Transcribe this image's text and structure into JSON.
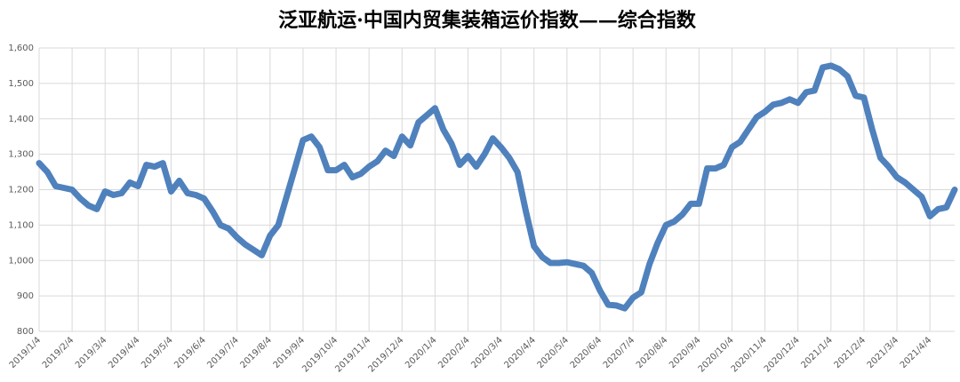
{
  "chart_data": {
    "type": "line",
    "title": "泛亚航运·中国内贸集装箱运价指数——综合指数",
    "categories": [
      "2019/1/4",
      null,
      null,
      null,
      "2019/2/4",
      null,
      null,
      null,
      "2019/3/4",
      null,
      null,
      null,
      "2019/4/4",
      null,
      null,
      null,
      "2019/5/4",
      null,
      null,
      null,
      "2019/6/4",
      null,
      null,
      null,
      "2019/7/4",
      null,
      null,
      null,
      "2019/8/4",
      null,
      null,
      null,
      "2019/9/4",
      null,
      null,
      null,
      "2019/10/4",
      null,
      null,
      null,
      "2019/11/4",
      null,
      null,
      null,
      "2019/12/4",
      null,
      null,
      null,
      "2020/1/4",
      null,
      null,
      null,
      "2020/2/4",
      null,
      null,
      null,
      "2020/3/4",
      null,
      null,
      null,
      "2020/4/4",
      null,
      null,
      null,
      "2020/5/4",
      null,
      null,
      null,
      "2020/6/4",
      null,
      null,
      null,
      "2020/7/4",
      null,
      null,
      null,
      "2020/8/4",
      null,
      null,
      null,
      "2020/9/4",
      null,
      null,
      null,
      "2020/10/4",
      null,
      null,
      null,
      "2020/11/4",
      null,
      null,
      null,
      "2020/12/4",
      null,
      null,
      null,
      "2021/1/4",
      null,
      null,
      null,
      "2021/2/4",
      null,
      null,
      null,
      "2021/3/4",
      null,
      null,
      null,
      "2021/4/4",
      null,
      null,
      null
    ],
    "series": [
      {
        "name": "综合指数",
        "color": "#4f81bd",
        "values": [
          1275,
          1250,
          1210,
          1205,
          1200,
          1175,
          1155,
          1145,
          1195,
          1185,
          1190,
          1220,
          1210,
          1270,
          1265,
          1275,
          1195,
          1225,
          1190,
          1185,
          1175,
          1140,
          1100,
          1090,
          1065,
          1045,
          1030,
          1015,
          1070,
          1100,
          1180,
          1260,
          1340,
          1350,
          1320,
          1255,
          1255,
          1270,
          1235,
          1245,
          1265,
          1280,
          1310,
          1295,
          1350,
          1325,
          1390,
          1410,
          1430,
          1370,
          1330,
          1270,
          1295,
          1265,
          1300,
          1345,
          1320,
          1290,
          1250,
          1140,
          1040,
          1010,
          993,
          993,
          995,
          990,
          985,
          965,
          915,
          875,
          873,
          865,
          895,
          910,
          990,
          1050,
          1100,
          1110,
          1130,
          1160,
          1160,
          1260,
          1260,
          1270,
          1320,
          1335,
          1370,
          1405,
          1420,
          1440,
          1445,
          1455,
          1445,
          1475,
          1480,
          1545,
          1550,
          1540,
          1520,
          1465,
          1460,
          1370,
          1290,
          1265,
          1235,
          1220,
          1200,
          1180,
          1125,
          1145,
          1150,
          1200
        ]
      }
    ],
    "ylim": [
      800,
      1600
    ],
    "yticks": [
      800,
      900,
      {
        "value": 1000,
        "label": "1,000"
      },
      {
        "value": 1100,
        "label": "1,100"
      },
      {
        "value": 1200,
        "label": "1,200"
      },
      {
        "value": 1300,
        "label": "1,300"
      },
      {
        "value": 1400,
        "label": "1,400"
      },
      {
        "value": 1500,
        "label": "1,500"
      },
      {
        "value": 1600,
        "label": "1,600"
      }
    ],
    "grid": true
  }
}
